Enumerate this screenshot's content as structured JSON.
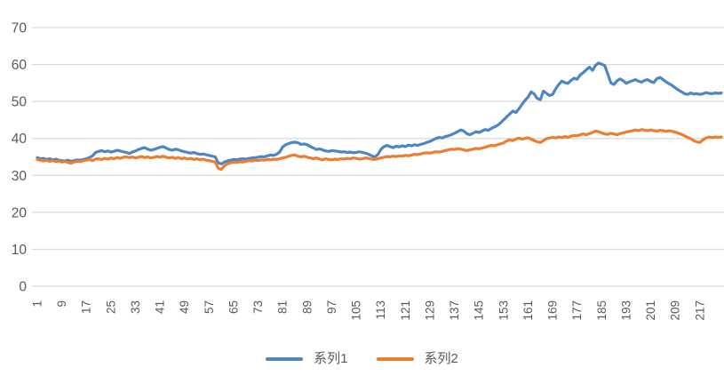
{
  "chart_data": {
    "type": "line",
    "title": "",
    "xlabel": "",
    "ylabel": "",
    "x_count": 224,
    "x_tick_labels": [
      "1",
      "9",
      "17",
      "25",
      "33",
      "41",
      "49",
      "57",
      "65",
      "73",
      "81",
      "89",
      "97",
      "105",
      "113",
      "121",
      "129",
      "137",
      "145",
      "153",
      "161",
      "169",
      "177",
      "185",
      "193",
      "201",
      "209",
      "217"
    ],
    "x_tick_step": 8,
    "ylim": [
      0,
      70
    ],
    "ytick_step": 10,
    "ytick_labels": [
      "0",
      "10",
      "20",
      "30",
      "40",
      "50",
      "60",
      "70"
    ],
    "grid": true,
    "gridline_color": "#D9D9D9",
    "tick_label_color": "#595959",
    "background_color": "#FFFFFF",
    "legend_position": "bottom-center",
    "series": [
      {
        "name": "系列1",
        "color": "#4E86C5",
        "values": [
          34.8,
          34.5,
          34.6,
          34.3,
          34.5,
          34.2,
          34.4,
          34.1,
          34.0,
          33.9,
          34.1,
          33.8,
          34.0,
          34.2,
          34.1,
          34.3,
          34.5,
          34.8,
          35.3,
          36.2,
          36.5,
          36.7,
          36.4,
          36.6,
          36.3,
          36.5,
          36.8,
          36.6,
          36.4,
          36.2,
          35.9,
          36.3,
          36.6,
          37.0,
          37.3,
          37.5,
          37.1,
          36.8,
          37.0,
          37.3,
          37.6,
          37.8,
          37.4,
          37.0,
          36.8,
          37.1,
          36.9,
          36.6,
          36.4,
          36.2,
          36.0,
          36.2,
          35.9,
          35.7,
          35.8,
          35.6,
          35.4,
          35.2,
          35.0,
          33.4,
          33.1,
          33.6,
          33.9,
          34.1,
          34.3,
          34.2,
          34.4,
          34.5,
          34.4,
          34.6,
          34.7,
          34.8,
          34.9,
          35.1,
          35.0,
          35.3,
          35.5,
          35.4,
          35.7,
          36.3,
          37.7,
          38.3,
          38.6,
          38.9,
          39.0,
          38.8,
          38.4,
          38.5,
          38.3,
          37.8,
          37.4,
          37.0,
          37.2,
          36.9,
          36.6,
          36.5,
          36.7,
          36.6,
          36.5,
          36.3,
          36.4,
          36.2,
          36.3,
          36.1,
          36.2,
          36.4,
          36.2,
          36.0,
          35.7,
          35.3,
          35.0,
          35.6,
          37.0,
          37.8,
          38.1,
          37.8,
          37.5,
          37.9,
          37.7,
          38.0,
          37.8,
          38.2,
          38.0,
          38.3,
          38.1,
          38.4,
          38.6,
          38.9,
          39.2,
          39.6,
          40.0,
          40.3,
          40.1,
          40.5,
          40.7,
          41.0,
          41.4,
          41.8,
          42.3,
          42.0,
          41.3,
          41.0,
          41.4,
          41.8,
          41.6,
          42.0,
          42.4,
          42.2,
          42.7,
          43.1,
          43.5,
          44.2,
          45.0,
          45.8,
          46.6,
          47.4,
          47.0,
          48.0,
          49.2,
          50.3,
          51.2,
          52.6,
          52.0,
          50.8,
          50.5,
          52.8,
          52.2,
          51.6,
          51.9,
          53.4,
          54.6,
          55.5,
          55.1,
          54.9,
          55.7,
          56.3,
          56.0,
          57.2,
          57.8,
          58.6,
          59.3,
          58.4,
          59.8,
          60.4,
          60.1,
          59.7,
          57.4,
          55.0,
          54.6,
          55.6,
          56.1,
          55.6,
          54.9,
          55.3,
          55.6,
          55.9,
          55.5,
          55.2,
          55.7,
          55.9,
          55.4,
          55.1,
          56.2,
          56.5,
          55.9,
          55.3,
          54.8,
          54.3,
          53.7,
          53.1,
          52.6,
          52.1,
          51.9,
          52.3,
          52.0,
          52.1,
          51.9,
          52.1,
          52.4,
          52.2,
          52.1,
          52.3,
          52.2,
          52.3
        ]
      },
      {
        "name": "系列2",
        "color": "#ED7D31",
        "values": [
          34.3,
          34.1,
          33.9,
          34.1,
          33.8,
          34.0,
          33.7,
          33.9,
          33.6,
          33.8,
          33.5,
          33.3,
          33.6,
          33.9,
          33.7,
          34.0,
          34.1,
          34.3,
          34.0,
          34.4,
          34.5,
          34.3,
          34.6,
          34.4,
          34.7,
          34.5,
          34.8,
          34.6,
          34.9,
          35.0,
          34.8,
          35.0,
          34.7,
          34.9,
          35.1,
          34.8,
          35.0,
          34.7,
          34.9,
          35.1,
          34.9,
          35.2,
          34.9,
          34.7,
          34.9,
          34.6,
          34.8,
          34.5,
          34.7,
          34.4,
          34.6,
          34.3,
          34.5,
          34.2,
          34.4,
          34.1,
          34.0,
          33.8,
          33.6,
          31.9,
          31.6,
          32.6,
          33.1,
          33.4,
          33.6,
          33.5,
          33.7,
          33.6,
          33.8,
          34.0,
          33.9,
          34.1,
          34.0,
          34.2,
          34.1,
          34.3,
          34.2,
          34.4,
          34.3,
          34.5,
          34.7,
          34.9,
          35.2,
          35.4,
          35.5,
          35.2,
          35.0,
          35.2,
          34.9,
          34.7,
          34.5,
          34.7,
          34.4,
          34.2,
          34.5,
          34.3,
          34.2,
          34.4,
          34.3,
          34.5,
          34.4,
          34.6,
          34.5,
          34.7,
          34.6,
          34.4,
          34.5,
          34.7,
          34.6,
          34.4,
          34.3,
          34.5,
          34.7,
          34.9,
          35.1,
          35.0,
          35.2,
          35.1,
          35.3,
          35.2,
          35.4,
          35.3,
          35.5,
          35.7,
          35.6,
          35.8,
          36.0,
          36.1,
          36.0,
          36.2,
          36.4,
          36.3,
          36.5,
          36.7,
          36.9,
          37.1,
          37.0,
          37.2,
          37.1,
          36.9,
          36.7,
          36.9,
          37.1,
          37.3,
          37.2,
          37.4,
          37.6,
          37.9,
          38.1,
          38.0,
          38.3,
          38.5,
          38.8,
          39.3,
          39.6,
          39.4,
          39.8,
          40.1,
          39.8,
          40.0,
          40.2,
          39.8,
          39.4,
          39.1,
          38.9,
          39.4,
          39.9,
          40.1,
          40.3,
          40.1,
          40.4,
          40.2,
          40.5,
          40.3,
          40.6,
          40.8,
          40.7,
          41.0,
          41.2,
          41.0,
          41.3,
          41.6,
          42.0,
          41.8,
          41.5,
          41.2,
          41.1,
          41.4,
          41.2,
          41.0,
          41.3,
          41.5,
          41.7,
          41.9,
          42.1,
          42.3,
          42.1,
          42.4,
          42.2,
          42.1,
          42.3,
          42.1,
          42.0,
          42.2,
          42.1,
          41.9,
          42.1,
          41.9,
          41.7,
          41.4,
          41.1,
          40.7,
          40.3,
          39.9,
          39.4,
          39.1,
          38.9,
          39.6,
          40.1,
          40.4,
          40.2,
          40.4,
          40.3,
          40.4
        ]
      }
    ]
  }
}
